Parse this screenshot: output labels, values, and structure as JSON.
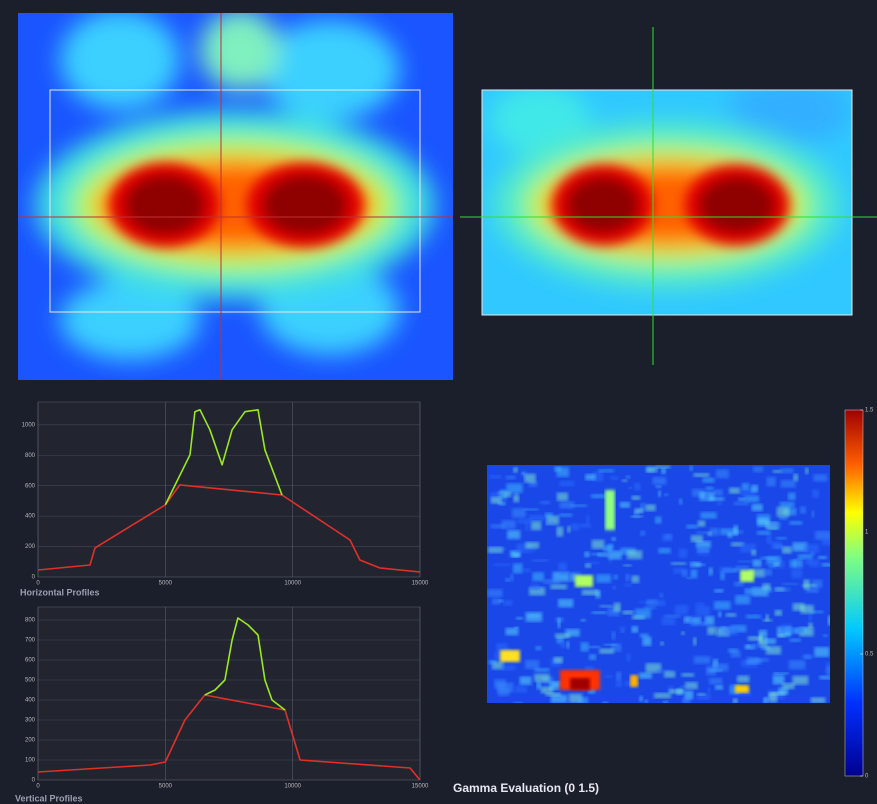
{
  "horizontal_profile": {
    "type": "line",
    "title": "Horizontal Profiles",
    "xlim": [
      0,
      15000
    ],
    "xticks": [
      0,
      5000,
      10000,
      15000
    ],
    "ylim": [
      0,
      1150
    ],
    "yticks": [
      0,
      200,
      400,
      600,
      800,
      1000
    ],
    "grid": true,
    "series": [
      {
        "color": "#e0302a",
        "x": [
          0,
          2040,
          2240,
          5000,
          5570,
          9580,
          12250,
          12640,
          13430,
          15000
        ],
        "values": [
          46,
          79,
          191,
          474,
          605,
          539,
          243,
          112,
          59,
          33
        ]
      },
      {
        "color": "#9be81e",
        "x": [
          5000,
          5970,
          6160,
          6360,
          6750,
          7230,
          7620,
          8130,
          8640,
          8910,
          9580
        ],
        "values": [
          474,
          803,
          1086,
          1099,
          967,
          737,
          967,
          1086,
          1099,
          836,
          539
        ]
      }
    ]
  },
  "vertical_profile": {
    "type": "line",
    "title": "Vertical Profiles",
    "xlim": [
      0,
      15000
    ],
    "xticks": [
      0,
      5000,
      10000,
      15000
    ],
    "ylim": [
      0,
      865
    ],
    "yticks": [
      0,
      100,
      200,
      300,
      400,
      500,
      600,
      700,
      800
    ],
    "grid": true,
    "series": [
      {
        "color": "#e0302a",
        "x": [
          0,
          4400,
          5000,
          5770,
          6550,
          9700,
          10290,
          14610,
          15000
        ],
        "values": [
          40,
          75,
          90,
          300,
          425,
          350,
          100,
          60,
          0
        ]
      },
      {
        "color": "#9be81e",
        "x": [
          6550,
          6950,
          7340,
          7620,
          7850,
          8250,
          8640,
          8910,
          9190,
          9700
        ],
        "values": [
          425,
          450,
          500,
          700,
          810,
          775,
          725,
          500,
          400,
          350
        ]
      }
    ]
  },
  "gamma": {
    "title": "Gamma Evaluation (0 1.5)",
    "colorbar_lim": [
      0,
      1.5
    ],
    "colorbar_ticks": [
      0,
      0.5,
      1,
      1.5
    ]
  }
}
